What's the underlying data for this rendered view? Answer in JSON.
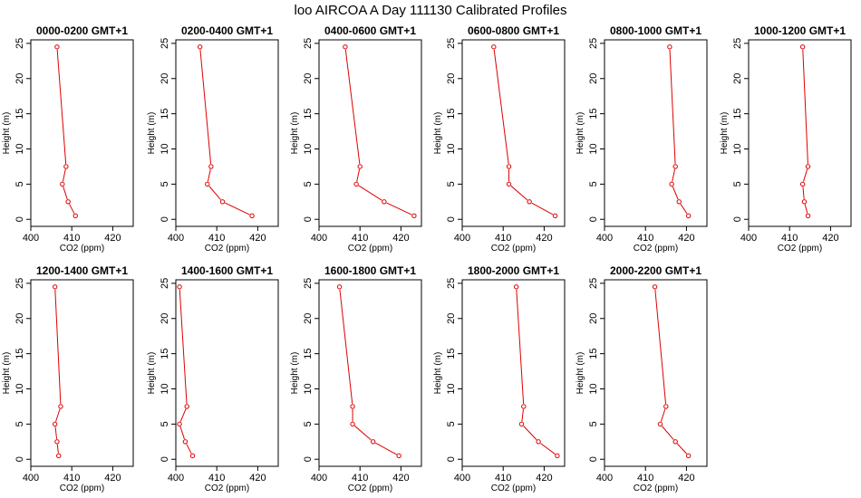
{
  "figure": {
    "title": "loo AIRCOA A  Day 111130  Calibrated Profiles",
    "series_color": "#dd0000"
  },
  "chart_data": [
    {
      "type": "line",
      "title": "0000-0200 GMT+1",
      "xlabel": "CO2 (ppm)",
      "ylabel": "Height (m)",
      "xlim": [
        400,
        425
      ],
      "ylim": [
        -1,
        25.5
      ],
      "xticks": [
        400,
        410,
        420
      ],
      "yticks": [
        0,
        5,
        10,
        15,
        20,
        25
      ],
      "x": [
        410.9,
        409.1,
        407.7,
        408.6,
        406.4
      ],
      "y": [
        0.5,
        2.5,
        5,
        7.5,
        24.5
      ]
    },
    {
      "type": "line",
      "title": "0200-0400 GMT+1",
      "xlabel": "CO2 (ppm)",
      "ylabel": "Height (m)",
      "xlim": [
        400,
        425
      ],
      "ylim": [
        -1,
        25.5
      ],
      "xticks": [
        400,
        410,
        420
      ],
      "yticks": [
        0,
        5,
        10,
        15,
        20,
        25
      ],
      "x": [
        418.6,
        411.4,
        407.7,
        408.6,
        405.9
      ],
      "y": [
        0.5,
        2.5,
        5,
        7.5,
        24.5
      ]
    },
    {
      "type": "line",
      "title": "0400-0600 GMT+1",
      "xlabel": "CO2 (ppm)",
      "ylabel": "Height (m)",
      "xlim": [
        400,
        425
      ],
      "ylim": [
        -1,
        25.5
      ],
      "xticks": [
        400,
        410,
        420
      ],
      "yticks": [
        0,
        5,
        10,
        15,
        20,
        25
      ],
      "x": [
        423.2,
        415.9,
        409.1,
        410.0,
        406.4
      ],
      "y": [
        0.5,
        2.5,
        5,
        7.5,
        24.5
      ]
    },
    {
      "type": "line",
      "title": "0600-0800 GMT+1",
      "xlabel": "CO2 (ppm)",
      "ylabel": "Height (m)",
      "xlim": [
        400,
        425
      ],
      "ylim": [
        -1,
        25.5
      ],
      "xticks": [
        400,
        410,
        420
      ],
      "yticks": [
        0,
        5,
        10,
        15,
        20,
        25
      ],
      "x": [
        422.7,
        416.4,
        411.4,
        411.4,
        407.7
      ],
      "y": [
        0.5,
        2.5,
        5,
        7.5,
        24.5
      ]
    },
    {
      "type": "line",
      "title": "0800-1000 GMT+1",
      "xlabel": "CO2 (ppm)",
      "ylabel": "Height (m)",
      "xlim": [
        400,
        425
      ],
      "ylim": [
        -1,
        25.5
      ],
      "xticks": [
        400,
        410,
        420
      ],
      "yticks": [
        0,
        5,
        10,
        15,
        20,
        25
      ],
      "x": [
        420.5,
        418.2,
        416.4,
        417.3,
        415.9
      ],
      "y": [
        0.5,
        2.5,
        5,
        7.5,
        24.5
      ]
    },
    {
      "type": "line",
      "title": "1000-1200 GMT+1",
      "xlabel": "CO2 (ppm)",
      "ylabel": "Height (m)",
      "xlim": [
        400,
        425
      ],
      "ylim": [
        -1,
        25.5
      ],
      "xticks": [
        400,
        410,
        420
      ],
      "yticks": [
        0,
        5,
        10,
        15,
        20,
        25
      ],
      "x": [
        414.5,
        413.6,
        413.2,
        414.5,
        413.2
      ],
      "y": [
        0.5,
        2.5,
        5,
        7.5,
        24.5
      ]
    },
    {
      "type": "line",
      "title": "1200-1400 GMT+1",
      "xlabel": "CO2 (ppm)",
      "ylabel": "Height (m)",
      "xlim": [
        400,
        425
      ],
      "ylim": [
        -1,
        25.5
      ],
      "xticks": [
        400,
        410,
        420
      ],
      "yticks": [
        0,
        5,
        10,
        15,
        20,
        25
      ],
      "x": [
        406.8,
        406.4,
        405.9,
        407.3,
        405.9
      ],
      "y": [
        0.5,
        2.5,
        5,
        7.5,
        24.5
      ]
    },
    {
      "type": "line",
      "title": "1400-1600 GMT+1",
      "xlabel": "CO2 (ppm)",
      "ylabel": "Height (m)",
      "xlim": [
        400,
        425
      ],
      "ylim": [
        -1,
        25.5
      ],
      "xticks": [
        400,
        410,
        420
      ],
      "yticks": [
        0,
        5,
        10,
        15,
        20,
        25
      ],
      "x": [
        404.1,
        402.3,
        400.9,
        402.7,
        400.9
      ],
      "y": [
        0.5,
        2.5,
        5,
        7.5,
        24.5
      ]
    },
    {
      "type": "line",
      "title": "1600-1800 GMT+1",
      "xlabel": "CO2 (ppm)",
      "ylabel": "Height (m)",
      "xlim": [
        400,
        425
      ],
      "ylim": [
        -1,
        25.5
      ],
      "xticks": [
        400,
        410,
        420
      ],
      "yticks": [
        0,
        5,
        10,
        15,
        20,
        25
      ],
      "x": [
        419.5,
        413.2,
        408.2,
        408.2,
        405.0
      ],
      "y": [
        0.5,
        2.5,
        5,
        7.5,
        24.5
      ]
    },
    {
      "type": "line",
      "title": "1800-2000 GMT+1",
      "xlabel": "CO2 (ppm)",
      "ylabel": "Height (m)",
      "xlim": [
        400,
        425
      ],
      "ylim": [
        -1,
        25.5
      ],
      "xticks": [
        400,
        410,
        420
      ],
      "yticks": [
        0,
        5,
        10,
        15,
        20,
        25
      ],
      "x": [
        423.2,
        418.6,
        414.5,
        415.0,
        413.2
      ],
      "y": [
        0.5,
        2.5,
        5,
        7.5,
        24.5
      ]
    },
    {
      "type": "line",
      "title": "2000-2200 GMT+1",
      "xlabel": "CO2 (ppm)",
      "ylabel": "Height (m)",
      "xlim": [
        400,
        425
      ],
      "ylim": [
        -1,
        25.5
      ],
      "xticks": [
        400,
        410,
        420
      ],
      "yticks": [
        0,
        5,
        10,
        15,
        20,
        25
      ],
      "x": [
        420.5,
        417.3,
        413.6,
        415.0,
        412.3
      ],
      "y": [
        0.5,
        2.5,
        5,
        7.5,
        24.5
      ]
    }
  ]
}
